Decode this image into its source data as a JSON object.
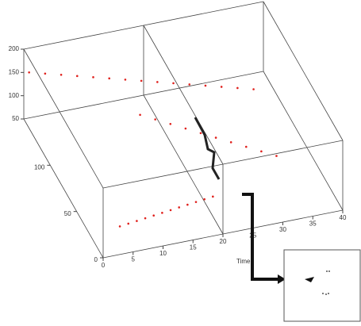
{
  "chart_data": {
    "type": "scatter3d",
    "x_label": "Time",
    "xlim": [
      0,
      40
    ],
    "xticks": [
      0,
      5,
      10,
      15,
      20,
      25,
      30,
      35,
      40
    ],
    "ylim": [
      0,
      150
    ],
    "yticks": [
      0,
      50,
      100
    ],
    "zlim": [
      50,
      200
    ],
    "zticks": [
      50,
      100,
      150,
      200
    ],
    "series": [
      {
        "color": "#e0201c",
        "x": [
          0,
          2.5,
          5,
          7.5,
          10,
          12.5,
          15,
          17.5,
          20,
          22.5,
          25,
          27.5,
          30,
          32.5,
          35,
          5,
          6.5,
          8,
          9.5,
          11,
          12.5,
          14,
          15.5,
          17,
          18.5,
          20,
          21.5,
          15,
          17,
          19,
          21,
          23,
          25,
          27,
          29,
          31,
          33
        ],
        "y": [
          140,
          138,
          136,
          134,
          132,
          130,
          128,
          126,
          124,
          122,
          120,
          118,
          116,
          114,
          112,
          25,
          26,
          27,
          28,
          29,
          30,
          31,
          32,
          33,
          34,
          35,
          36,
          100,
          94,
          88,
          82,
          76,
          70,
          64,
          58,
          52,
          46
        ],
        "z": [
          170,
          165,
          160,
          155,
          150,
          145,
          140,
          135,
          130,
          125,
          120,
          115,
          110,
          105,
          100,
          55,
          55,
          55,
          55,
          55,
          55,
          55,
          55,
          55,
          55,
          55,
          55,
          120,
          117,
          114,
          111,
          108,
          105,
          102,
          99,
          96,
          93
        ]
      }
    ]
  }
}
